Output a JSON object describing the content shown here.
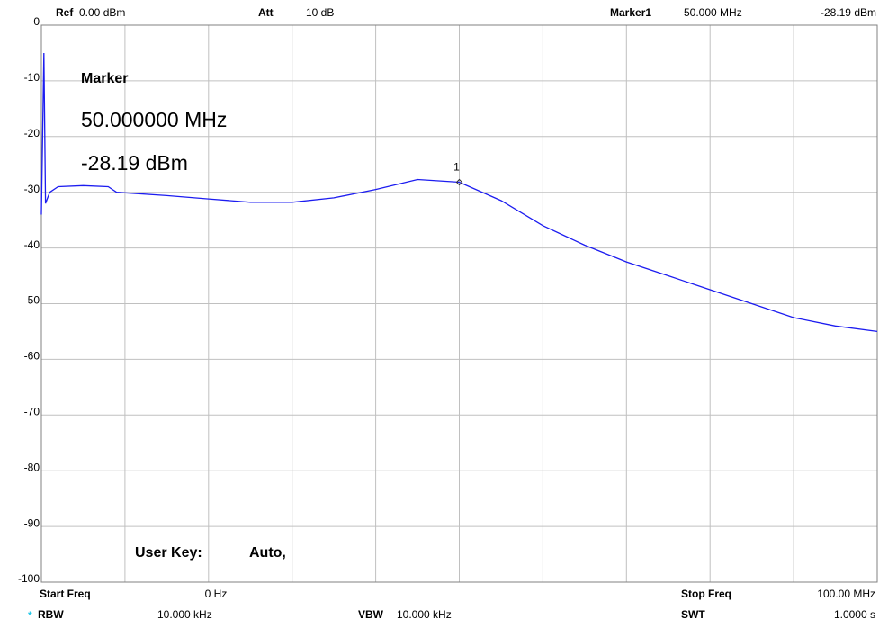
{
  "header": {
    "ref_label": "Ref",
    "ref_value": "0.00 dBm",
    "att_label": "Att",
    "att_value": "10 dB",
    "marker_label": "Marker1",
    "marker_freq": "50.000 MHz",
    "marker_level": "-28.19 dBm"
  },
  "marker_box": {
    "title": "Marker",
    "freq": "50.000000 MHz",
    "level": "-28.19 dBm"
  },
  "user_key": {
    "label": "User Key:",
    "value": "Auto,"
  },
  "footer": {
    "start_label": "Start Freq",
    "start_value": "0 Hz",
    "stop_label": "Stop Freq",
    "stop_value": "100.00 MHz",
    "rbw_flag": "*",
    "rbw_label": "RBW",
    "rbw_value": "10.000 kHz",
    "vbw_label": "VBW",
    "vbw_value": "10.000 kHz",
    "swt_label": "SWT",
    "swt_value": "1.0000 s"
  },
  "chart_data": {
    "type": "line",
    "color": "#1c1cf0",
    "x": [
      0,
      0.3,
      0.5,
      1,
      2,
      5,
      8,
      9,
      10,
      15,
      20,
      25,
      30,
      35,
      40,
      45,
      50,
      55,
      60,
      65,
      70,
      75,
      80,
      85,
      90,
      95,
      100
    ],
    "values": [
      -34,
      -5,
      -32,
      -30,
      -29,
      -28.8,
      -29,
      -30,
      -30.1,
      -30.6,
      -31.2,
      -31.8,
      -31.8,
      -31,
      -29.5,
      -27.7,
      -28.19,
      -31.5,
      -36,
      -39.5,
      -42.5,
      -45,
      -47.5,
      -50,
      -52.5,
      -54,
      -55
    ],
    "xlim": [
      0,
      100
    ],
    "ylim": [
      -100,
      0
    ],
    "yticks": [
      0,
      -10,
      -20,
      -30,
      -40,
      -50,
      -60,
      -70,
      -80,
      -90,
      -100
    ],
    "grid": true,
    "marker": {
      "label": "1",
      "x": 50,
      "value": -28.19
    }
  }
}
